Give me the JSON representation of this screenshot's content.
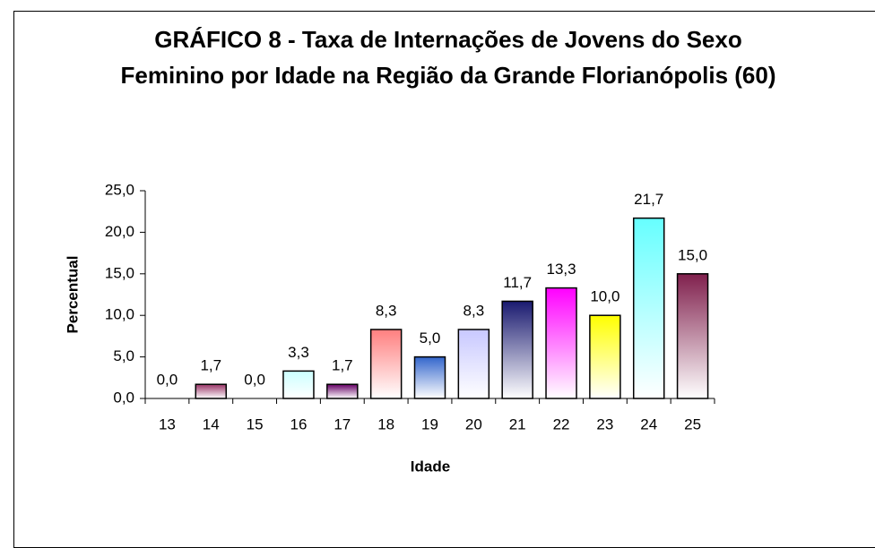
{
  "chart_data": {
    "type": "bar",
    "title": "GRÁFICO 8 - Taxa de Internações de Jovens do Sexo Feminino por Idade na Região da Grande Florianópolis (60)",
    "x_label": "Idade",
    "y_label": "Percentual",
    "categories": [
      "13",
      "14",
      "15",
      "16",
      "17",
      "18",
      "19",
      "20",
      "21",
      "22",
      "23",
      "24",
      "25"
    ],
    "values": [
      0.0,
      1.7,
      0.0,
      3.3,
      1.7,
      8.3,
      5.0,
      8.3,
      11.7,
      13.3,
      10.0,
      21.7,
      15.0
    ],
    "value_labels": [
      "0,0",
      "1,7",
      "0,0",
      "3,3",
      "1,7",
      "8,3",
      "5,0",
      "8,3",
      "11,7",
      "13,3",
      "10,0",
      "21,7",
      "15,0"
    ],
    "colors": [
      "#993366",
      "#993366",
      "#ccffff",
      "#ccffff",
      "#660066",
      "#ff7f7f",
      "#3366cc",
      "#c8c8ff",
      "#1a1a70",
      "#ff00ff",
      "#ffff00",
      "#66ffff",
      "#80204d"
    ],
    "ylim": [
      0,
      25
    ],
    "yticks": [
      {
        "value": 0,
        "label": "0,0"
      },
      {
        "value": 5,
        "label": "5,0"
      },
      {
        "value": 10,
        "label": "10,0"
      },
      {
        "value": 15,
        "label": "15,0"
      },
      {
        "value": 20,
        "label": "20,0"
      },
      {
        "value": 25,
        "label": "25,0"
      }
    ]
  }
}
